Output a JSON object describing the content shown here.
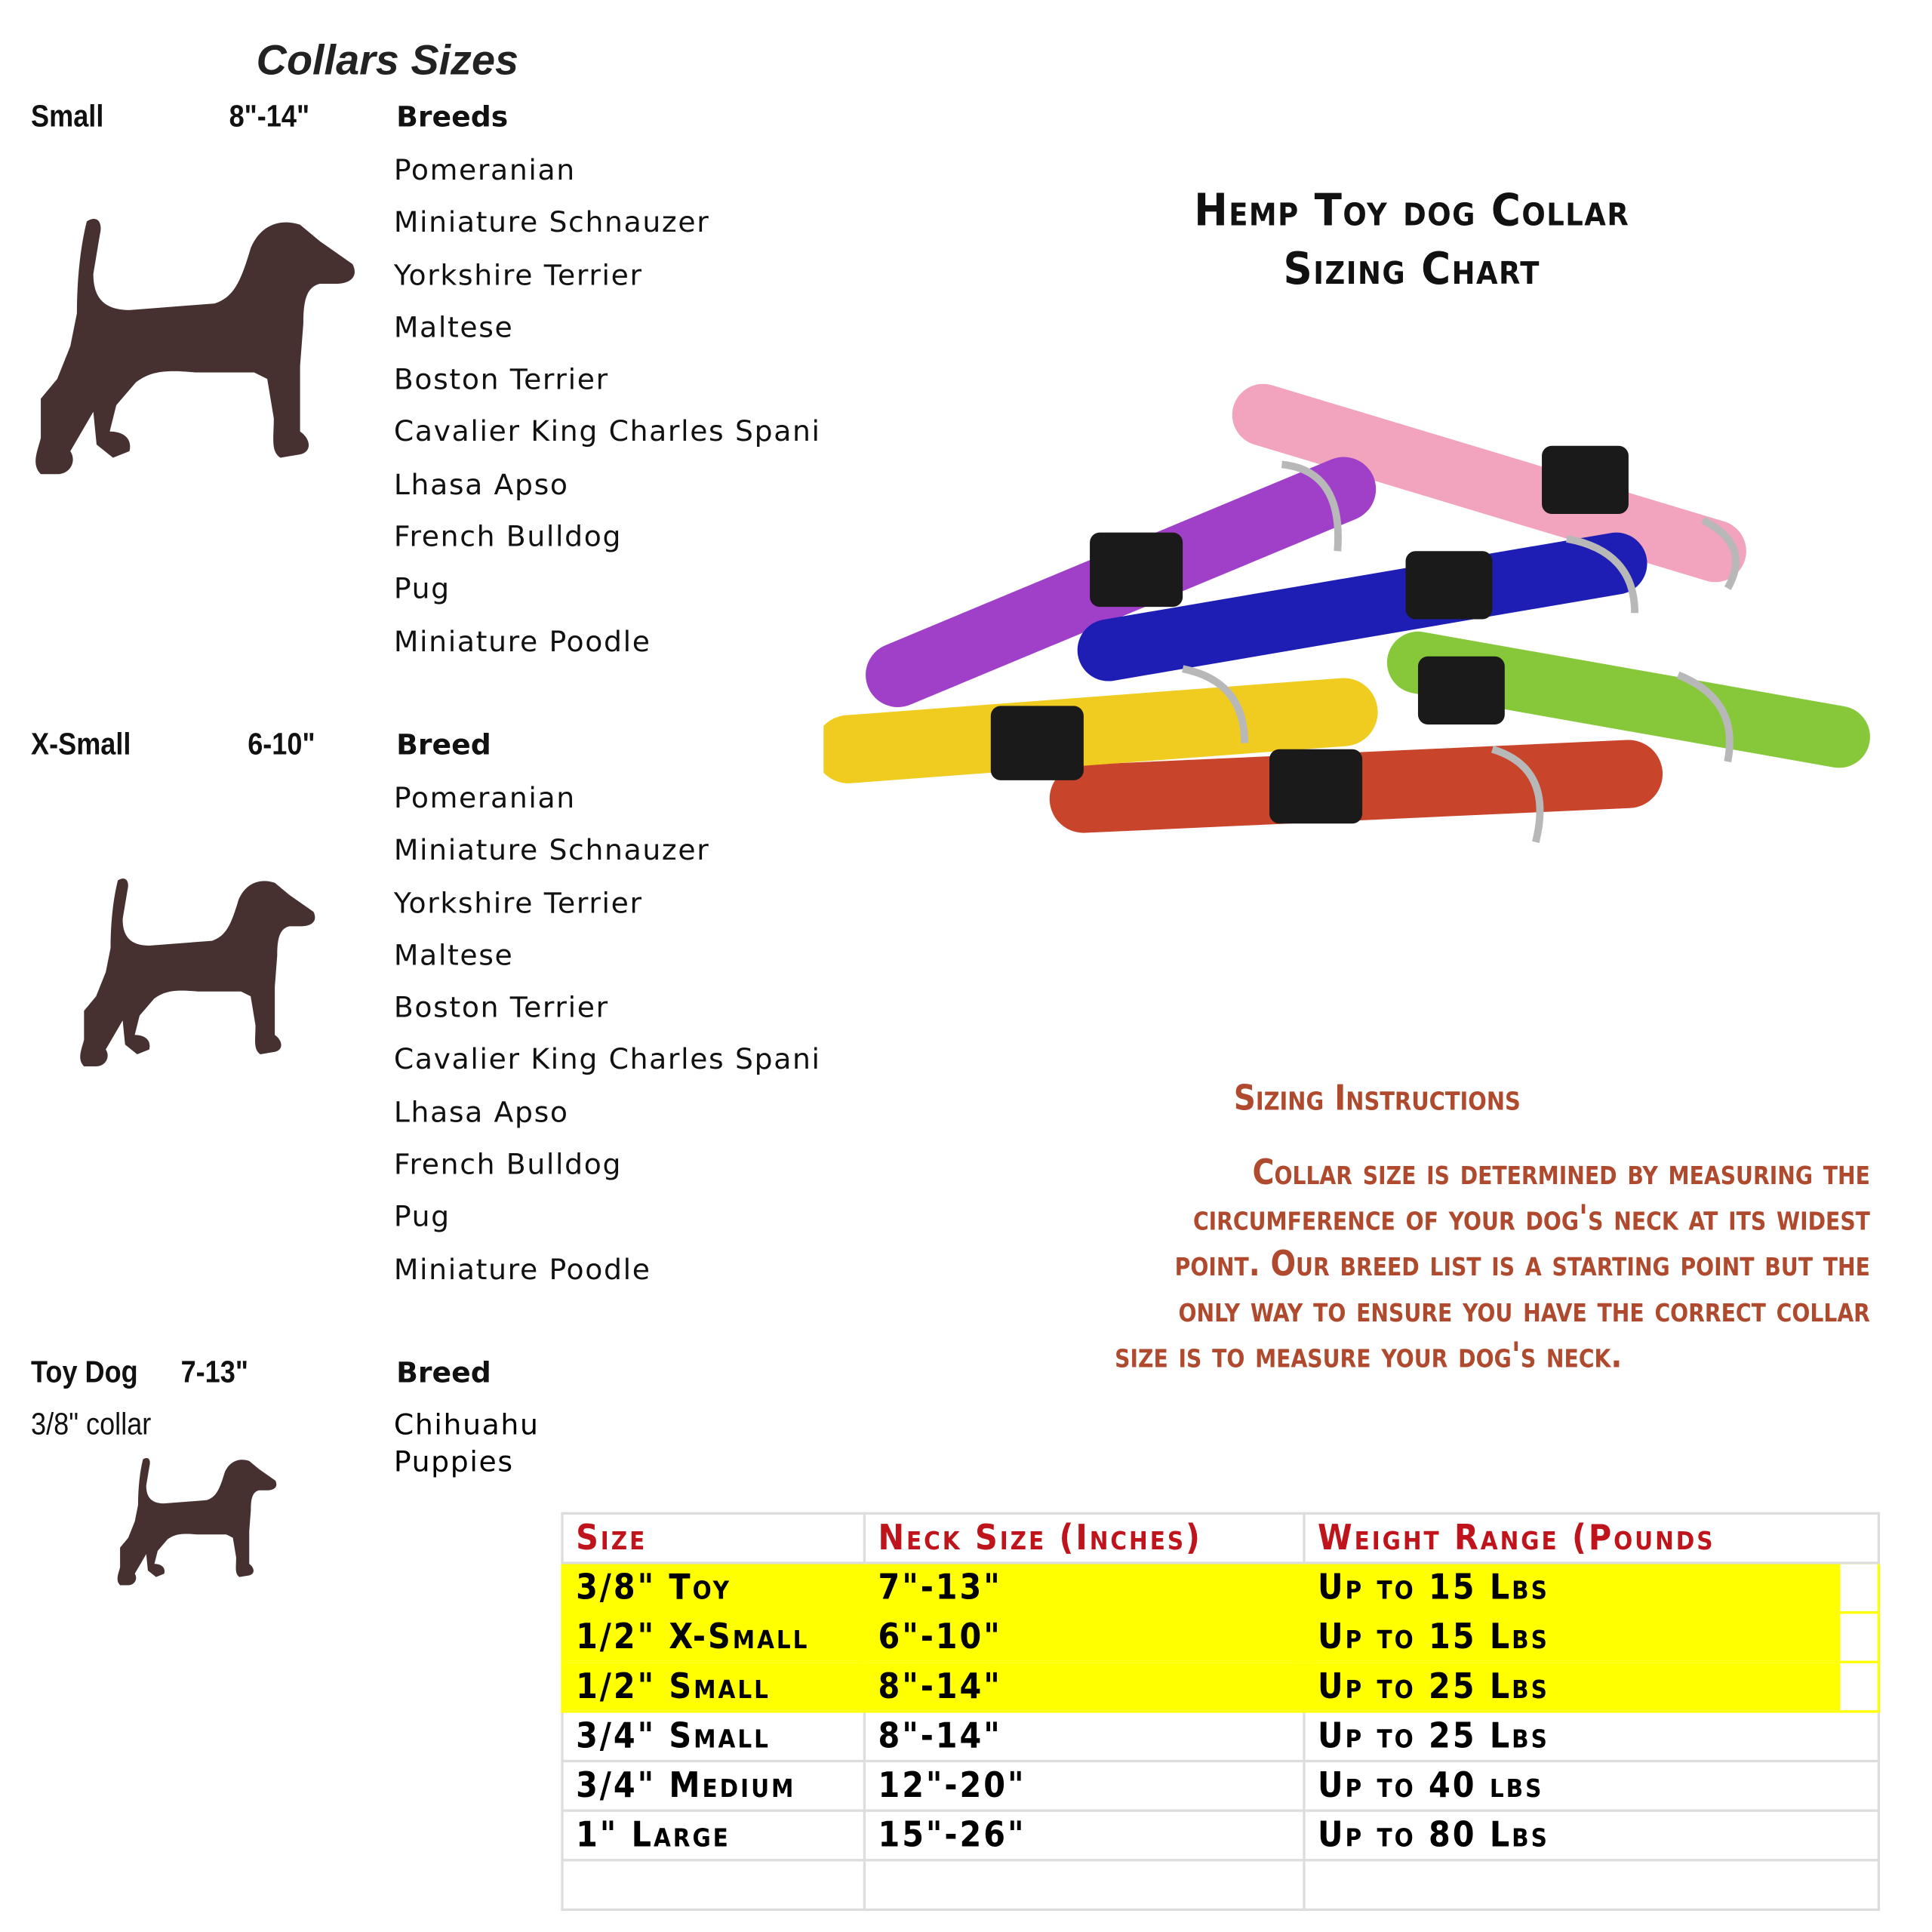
{
  "left": {
    "title": "Collars Sizes",
    "sections": [
      {
        "size": "Small",
        "range": "8\"-14\"",
        "breeds_label": "Breeds",
        "breeds": [
          "Pomeranian",
          "Miniature Schnauzer",
          "Yorkshire Terrier",
          "Maltese",
          "Boston Terrier",
          "Cavalier King Charles Spaniel",
          "Lhasa Apso",
          "French Bulldog",
          "Pug",
          "Miniature Poodle"
        ]
      },
      {
        "size": "X-Small",
        "range": "6-10\"",
        "breeds_label": "Breed",
        "breeds": [
          "Pomeranian",
          "Miniature Schnauzer",
          "Yorkshire Terrier",
          "Maltese",
          "Boston Terrier",
          "Cavalier King Charles Spaniel",
          "Lhasa Apso",
          "French Bulldog",
          "Pug",
          "Miniature Poodle"
        ]
      },
      {
        "size": "Toy Dog",
        "range": "7-13\"",
        "note": "3/8\" collar",
        "breeds_label": "Breed",
        "breeds": [
          "Chihuahu",
          "Puppies"
        ]
      }
    ],
    "dog_color": "#463130"
  },
  "right": {
    "title_line1": "Hemp Toy dog Collar",
    "title_line2": "Sizing Chart",
    "photo_collar_colors": [
      "#f2a3bd",
      "#a040c8",
      "#1e1eb4",
      "#86c83a",
      "#f0cc20",
      "#c8442a"
    ],
    "instructions_heading": "Sizing Instructions",
    "instructions_lines": [
      "Collar size is determined by measuring the",
      "circumference of your dog's neck at its widest",
      "point.  Our breed list is a starting point  but the",
      "only way to ensure you have the correct collar",
      "size is to measure your dog's neck."
    ],
    "instructions_color": "#b04a2e"
  },
  "table": {
    "headers": [
      "Size",
      "Neck Size (Inches)",
      "Weight Range (Pounds"
    ],
    "header_color": "#c0141c",
    "highlight_color": "#ffff00",
    "rows": [
      {
        "cells": [
          "3/8\" Toy",
          "7\"-13\"",
          "Up to 15 Lbs"
        ],
        "highlighted": true
      },
      {
        "cells": [
          "1/2\" X-Small",
          "6\"-10\"",
          "Up to 15 Lbs"
        ],
        "highlighted": true
      },
      {
        "cells": [
          "1/2\" Small",
          "8\"-14\"",
          "Up to 25 Lbs"
        ],
        "highlighted": true
      },
      {
        "cells": [
          "3/4\" Small",
          "8\"-14\"",
          "Up to 25 Lbs"
        ],
        "highlighted": false
      },
      {
        "cells": [
          "3/4\" Medium",
          "12\"-20\"",
          "Up to 40 lbs"
        ],
        "highlighted": false
      },
      {
        "cells": [
          "1\" Large",
          "15\"-26\"",
          "Up to 80 Lbs"
        ],
        "highlighted": false
      },
      {
        "cells": [
          "",
          "",
          ""
        ],
        "highlighted": false
      }
    ]
  }
}
